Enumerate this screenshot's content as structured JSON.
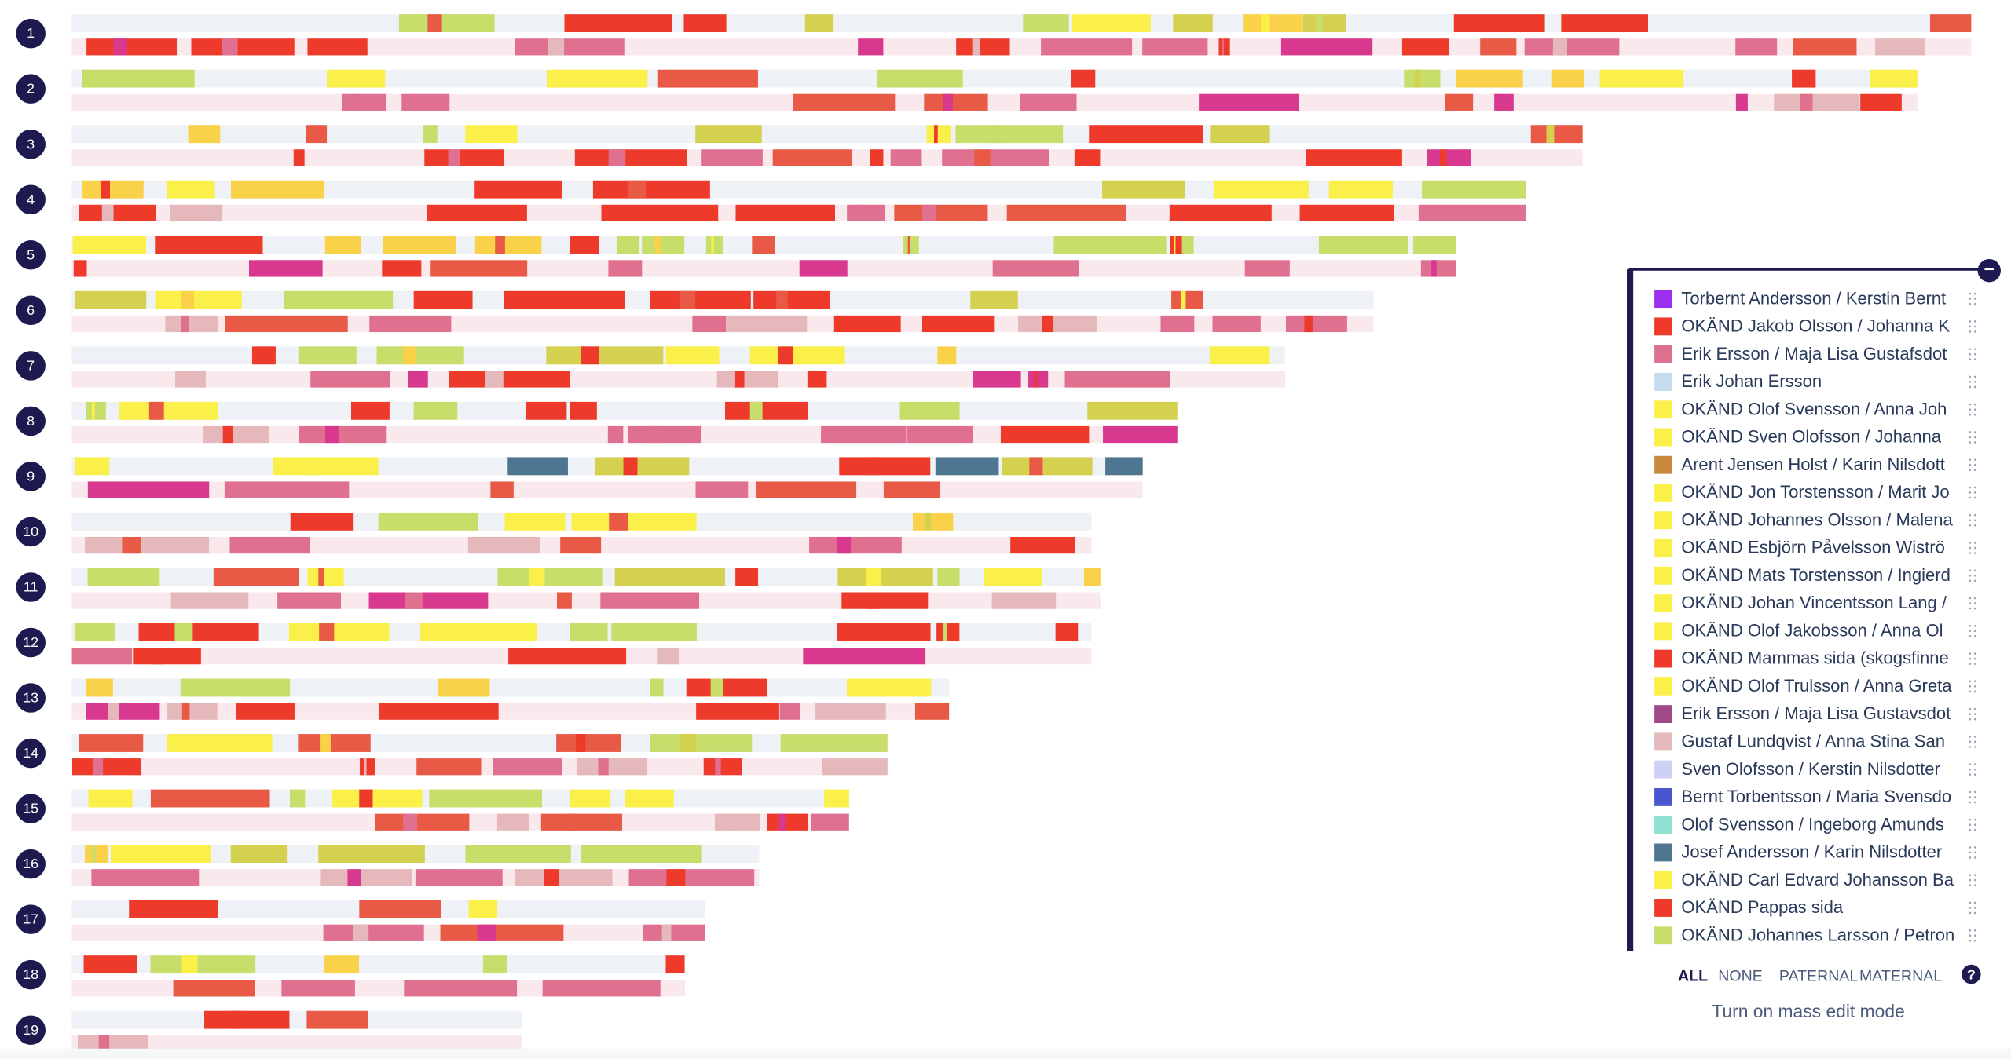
{
  "chromosomes": [
    "1",
    "2",
    "3",
    "4",
    "5",
    "6",
    "7",
    "8",
    "9",
    "10",
    "11",
    "12",
    "13",
    "14",
    "15",
    "16",
    "17",
    "18",
    "19"
  ],
  "legend": {
    "collapse": "−",
    "items": [
      {
        "label": "Torbernt Andersson / Kerstin Bernt",
        "color": "#9b30f0"
      },
      {
        "label": "OKÄND Jakob Olsson / Johanna K",
        "color": "#ee3a2a"
      },
      {
        "label": "Erik Ersson / Maja Lisa Gustafsdot",
        "color": "#e07090"
      },
      {
        "label": "Erik Johan Ersson",
        "color": "#c5dcf0"
      },
      {
        "label": "OKÄND Olof Svensson / Anna Joh",
        "color": "#fbf04a"
      },
      {
        "label": "OKÄND Sven Olofsson / Johanna",
        "color": "#fbf04a"
      },
      {
        "label": "Arent Jensen Holst / Karin Nilsdott",
        "color": "#c98a40"
      },
      {
        "label": "OKÄND Jon Torstensson / Marit Jo",
        "color": "#fbf04a"
      },
      {
        "label": "OKÄND Johannes Olsson / Malena",
        "color": "#fbf04a"
      },
      {
        "label": "OKÄND Esbjörn Påvelsson Wiströ",
        "color": "#fbf04a"
      },
      {
        "label": "OKÄND Mats Torstensson / Ingierd",
        "color": "#fbf04a"
      },
      {
        "label": "OKÄND Johan Vincentsson Lang /",
        "color": "#fbf04a"
      },
      {
        "label": "OKÄND Olof Jakobsson / Anna Ol",
        "color": "#fbf04a"
      },
      {
        "label": "OKÄND Mammas sida (skogsfinne",
        "color": "#ee3a2a"
      },
      {
        "label": "OKÄND Olof Trulsson / Anna Greta",
        "color": "#fbf04a"
      },
      {
        "label": "Erik Ersson / Maja Lisa Gustavsdot",
        "color": "#a04a8a"
      },
      {
        "label": "Gustaf Lundqvist / Anna Stina San",
        "color": "#e5b8bc"
      },
      {
        "label": "Sven Olofsson / Kerstin Nilsdotter",
        "color": "#cfd0f5"
      },
      {
        "label": "Bernt Torbentsson / Maria Svensdo",
        "color": "#4a55d0"
      },
      {
        "label": "Olof Svensson / Ingeborg Amunds",
        "color": "#8ee0d0"
      },
      {
        "label": "Josef Andersson / Karin Nilsdotter",
        "color": "#4e7690"
      },
      {
        "label": "OKÄND Carl Edvard Johansson Ba",
        "color": "#fbf04a"
      },
      {
        "label": "OKÄND Pappas sida",
        "color": "#ee3a2a"
      },
      {
        "label": "OKÄND Johannes Larsson / Petron",
        "color": "#c8de6a"
      }
    ]
  },
  "filters": [
    "ALL",
    "NONE",
    "PATERNAL",
    "MATERNAL"
  ],
  "help": "?",
  "mass_edit": "Turn on mass edit mode"
}
